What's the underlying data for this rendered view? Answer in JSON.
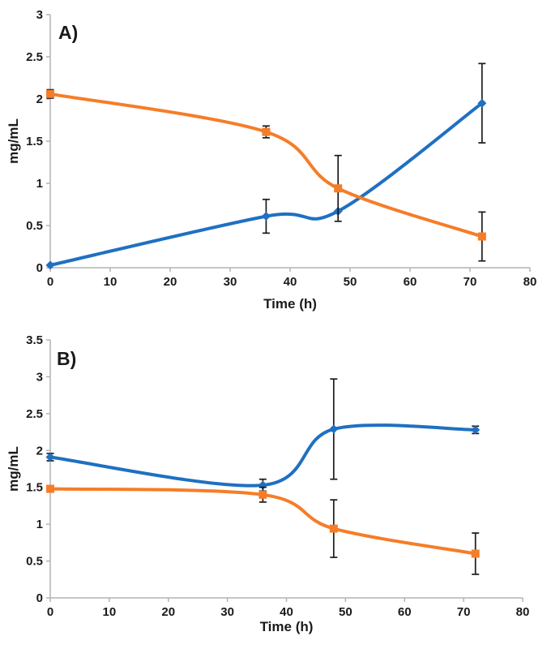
{
  "page": {
    "background": "#ffffff",
    "description_colors": {
      "axis_line": "#b3b3b3",
      "error_bar": "#1a1a1a",
      "text": "#1a1a1a",
      "blue_series": "#1f70c1",
      "orange_series": "#f57d28"
    }
  },
  "chart_data": [
    {
      "id": "A",
      "type": "line",
      "panel_label": "A)",
      "xlabel": "Time (h)",
      "ylabel": "mg/mL",
      "xlim": [
        0,
        80
      ],
      "ylim": [
        0,
        3
      ],
      "xticks": [
        0,
        10,
        20,
        30,
        40,
        50,
        60,
        70,
        80
      ],
      "yticks": [
        0,
        0.5,
        1,
        1.5,
        2,
        2.5,
        3
      ],
      "grid": false,
      "legend": "none",
      "x": [
        0,
        36,
        48,
        72
      ],
      "series": [
        {
          "name": "blue-series",
          "color": "#1f70c1",
          "marker": "diamond",
          "smoothed": true,
          "values": [
            0.03,
            0.61,
            0.67,
            1.95
          ],
          "errors": [
            0,
            0.2,
            0,
            0.47
          ]
        },
        {
          "name": "orange-series",
          "color": "#f57d28",
          "marker": "square",
          "smoothed": true,
          "values": [
            2.06,
            1.61,
            0.94,
            0.37
          ],
          "errors": [
            0.05,
            0.07,
            0.39,
            0.29
          ]
        }
      ]
    },
    {
      "id": "B",
      "type": "line",
      "panel_label": "B)",
      "xlabel": "Time (h)",
      "ylabel": "mg/mL",
      "xlim": [
        0,
        80
      ],
      "ylim": [
        0,
        3.5
      ],
      "xticks": [
        0,
        10,
        20,
        30,
        40,
        50,
        60,
        70,
        80
      ],
      "yticks": [
        0,
        0.5,
        1,
        1.5,
        2,
        2.5,
        3,
        3.5
      ],
      "grid": false,
      "legend": "none",
      "x": [
        0,
        36,
        48,
        72
      ],
      "series": [
        {
          "name": "blue-series",
          "color": "#1f70c1",
          "marker": "diamond",
          "smoothed": true,
          "values": [
            1.91,
            1.53,
            2.29,
            2.28
          ],
          "errors": [
            0.05,
            0.08,
            0.68,
            0.05
          ]
        },
        {
          "name": "orange-series",
          "color": "#f57d28",
          "marker": "square",
          "smoothed": true,
          "values": [
            1.48,
            1.4,
            0.94,
            0.6
          ],
          "errors": [
            0.04,
            0.1,
            0.39,
            0.28
          ]
        }
      ]
    }
  ]
}
